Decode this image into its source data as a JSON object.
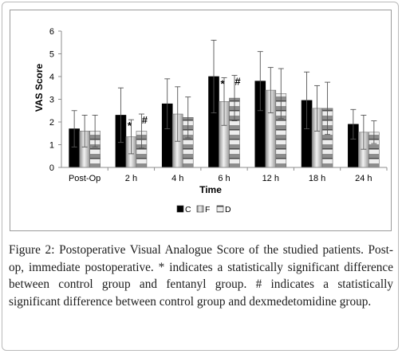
{
  "chart_data": {
    "type": "bar",
    "ylabel": "VAS Score",
    "xlabel": "Time",
    "ylim": [
      0,
      6
    ],
    "yticks": [
      "0",
      "1",
      "2",
      "3",
      "4",
      "5",
      "6"
    ],
    "grid": false,
    "legend_position": "bottom",
    "categories": [
      "Post-Op",
      "2 h",
      "4 h",
      "6 h",
      "12 h",
      "18 h",
      "24 h"
    ],
    "series": [
      {
        "name": "C",
        "values": [
          1.7,
          2.3,
          2.8,
          4.0,
          3.8,
          2.95,
          1.9
        ],
        "errors": [
          0.8,
          1.2,
          1.1,
          1.6,
          1.3,
          1.25,
          0.65
        ]
      },
      {
        "name": "F",
        "values": [
          1.6,
          1.35,
          2.35,
          2.9,
          3.4,
          2.6,
          1.55
        ],
        "errors": [
          0.7,
          0.75,
          1.2,
          1.05,
          1.0,
          1.0,
          0.75
        ]
      },
      {
        "name": "D",
        "values": [
          1.6,
          1.6,
          2.2,
          3.05,
          3.25,
          2.6,
          1.55
        ],
        "errors": [
          0.7,
          0.75,
          0.9,
          1.0,
          1.1,
          1.15,
          0.5
        ]
      }
    ],
    "annotations": [
      {
        "category": "2 h",
        "series": "F",
        "text": "*"
      },
      {
        "category": "2 h",
        "series": "D",
        "text": "#"
      },
      {
        "category": "6 h",
        "series": "F",
        "text": "*"
      },
      {
        "category": "6 h",
        "series": "D",
        "text": "#"
      }
    ],
    "colors": {
      "C": "#000000",
      "F": "#d2d2d2",
      "D": "#c0c0c0",
      "axis": "#8c8c8c"
    }
  },
  "caption": {
    "label": "Figure 2:",
    "text": " Postoperative Visual Analogue Score of the studied patients. Post-op, immediate postoperative. * indicates a statistically significant difference between control group and fentanyl group. # indicates a statistically significant difference between control group and dexmedetomidine group."
  }
}
